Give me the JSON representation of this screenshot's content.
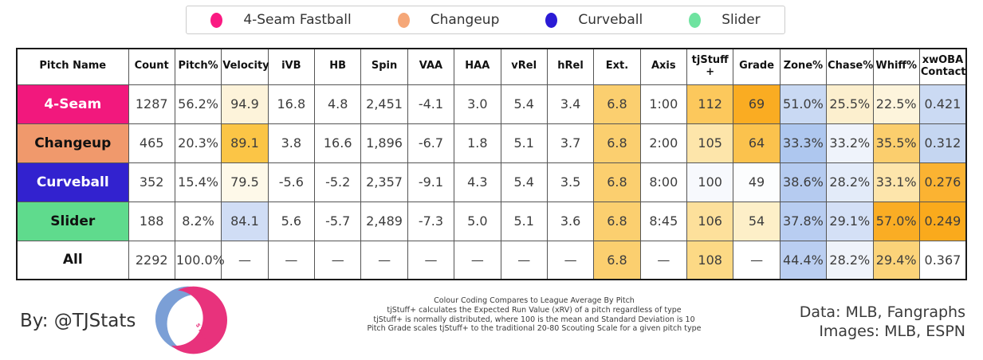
{
  "legend": {
    "items": [
      {
        "label": "4-Seam Fastball",
        "color": "#FA1A82"
      },
      {
        "label": "Changeup",
        "color": "#F5A778"
      },
      {
        "label": "Curveball",
        "color": "#2B1BD5"
      },
      {
        "label": "Slider",
        "color": "#6FE3A0"
      }
    ]
  },
  "chart_data": {
    "type": "table",
    "columns": [
      "Pitch Name",
      "Count",
      "Pitch%",
      "Velocity",
      "iVB",
      "HB",
      "Spin",
      "VAA",
      "HAA",
      "vRel",
      "hRel",
      "Ext.",
      "Axis",
      "tjStuff +",
      "Grade",
      "Zone%",
      "Chase%",
      "Whiff%",
      "xwOBA\nContact"
    ],
    "rows": [
      {
        "name": "4-Seam",
        "name_bg": "#F2187D",
        "name_fg": "#ffffff",
        "values": [
          "1287",
          "56.2%",
          "94.9",
          "16.8",
          "4.8",
          "2,451",
          "-4.1",
          "3.0",
          "5.4",
          "3.4",
          "6.8",
          "1:00",
          "112",
          "69",
          "51.0%",
          "25.5%",
          "22.5%",
          "0.421"
        ],
        "cell_bgs": [
          "",
          "",
          "#FDF3DA",
          "",
          "",
          "",
          "",
          "",
          "",
          "",
          "#FBCF6F",
          "",
          "#FCC85C",
          "#FAAC22",
          "#C9D9F3",
          "#FCEFCE",
          "#FDF4DC",
          "#CBDAF3"
        ]
      },
      {
        "name": "Changeup",
        "name_bg": "#F0996C",
        "name_fg": "#111111",
        "values": [
          "465",
          "20.3%",
          "89.1",
          "3.8",
          "16.6",
          "1,896",
          "-6.7",
          "1.8",
          "5.1",
          "3.7",
          "6.8",
          "2:00",
          "105",
          "64",
          "33.3%",
          "33.2%",
          "35.5%",
          "0.312"
        ],
        "cell_bgs": [
          "",
          "",
          "#FBC546",
          "",
          "",
          "",
          "",
          "",
          "",
          "",
          "#FBCF6F",
          "",
          "#FDE5AA",
          "#FBC24D",
          "#AEC7EF",
          "#EFF3FB",
          "#FBCE6D",
          "#C5D6F1"
        ]
      },
      {
        "name": "Curveball",
        "name_bg": "#3222CF",
        "name_fg": "#ffffff",
        "values": [
          "352",
          "15.4%",
          "79.5",
          "-5.6",
          "-5.2",
          "2,357",
          "-9.1",
          "4.3",
          "5.4",
          "3.5",
          "6.8",
          "8:00",
          "100",
          "49",
          "38.6%",
          "28.2%",
          "33.1%",
          "0.276"
        ],
        "cell_bgs": [
          "",
          "",
          "#FEF9E9",
          "",
          "",
          "",
          "",
          "",
          "",
          "",
          "#FBCF6F",
          "",
          "#F7F9FD",
          "#FCFDFE",
          "#B5CBF0",
          "#E3EBF9",
          "#FDE5AB",
          "#FBB332"
        ]
      },
      {
        "name": "Slider",
        "name_bg": "#5FDB8D",
        "name_fg": "#111111",
        "values": [
          "188",
          "8.2%",
          "84.1",
          "5.6",
          "-5.7",
          "2,489",
          "-7.3",
          "5.0",
          "5.1",
          "3.6",
          "6.8",
          "8:45",
          "106",
          "54",
          "37.8%",
          "29.1%",
          "57.0%",
          "0.249"
        ],
        "cell_bgs": [
          "",
          "",
          "#D0DDF5",
          "",
          "",
          "",
          "",
          "",
          "",
          "",
          "#FBCF6F",
          "",
          "#FDE09B",
          "#FDEFC8",
          "#B8CDF1",
          "#D4E0F6",
          "#FAAD24",
          "#FAAA1C"
        ]
      },
      {
        "name": "All",
        "name_bg": "#ffffff",
        "name_fg": "#111111",
        "values": [
          "2292",
          "100.0%",
          "—",
          "—",
          "—",
          "—",
          "—",
          "—",
          "—",
          "—",
          "6.8",
          "—",
          "108",
          "—",
          "44.4%",
          "28.2%",
          "29.4%",
          "0.367"
        ],
        "cell_bgs": [
          "",
          "",
          "",
          "",
          "",
          "",
          "",
          "",
          "",
          "",
          "#FBCF6F",
          "",
          "#FCD985",
          "",
          "#BACEF1",
          "#EFF3FA",
          "#FBD379",
          ""
        ]
      }
    ],
    "title": "",
    "legend_position": "top"
  },
  "footer": {
    "by_line": "By: @TJStats",
    "notes": [
      "Colour Coding Compares to League Average By Pitch",
      "tjStuff+ calculates the Expected Run Value (xRV) of a pitch regardless of type",
      "tjStuff+ is normally distributed, where 100 is the mean and Standard Deviation is 10",
      "Pitch Grade scales tjStuff+ to the traditional 20-80 Scouting Scale for a given pitch type"
    ],
    "credit_line1": "Data: MLB, Fangraphs",
    "credit_line2": "Images: MLB, ESPN",
    "logo_colors": {
      "blue": "#7B9FD6",
      "pink": "#E8327C"
    }
  }
}
